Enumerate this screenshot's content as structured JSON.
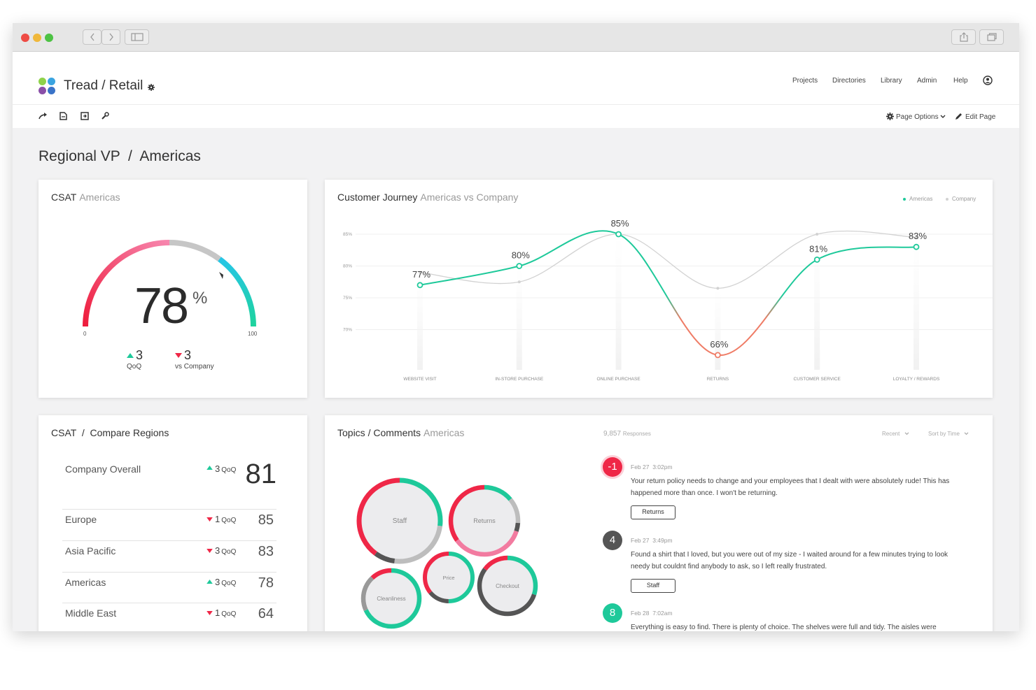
{
  "app": {
    "brand": "Tread / Retail",
    "nav": [
      "Projects",
      "Directories",
      "Library",
      "Admin",
      "Help"
    ]
  },
  "toolbar": {
    "page_options": "Page Options",
    "edit_page": "Edit Page"
  },
  "page": {
    "title": "Regional VP  /  Americas"
  },
  "csat": {
    "title": "CSAT",
    "subtitle": "Americas",
    "value": 78,
    "value_label": "78",
    "unit": "%",
    "min_label": "0",
    "max_label": "100",
    "qoq": {
      "value": "3",
      "label": "QoQ"
    },
    "vs_company": {
      "value": "3",
      "label": "vs Company"
    }
  },
  "journey": {
    "title": "Customer Journey",
    "subtitle": "Americas vs Company",
    "legend": [
      "Americas",
      "Company"
    ]
  },
  "chart_data": {
    "type": "line",
    "categories": [
      "WEBSITE VISIT",
      "IN-STORE PURCHASE",
      "ONLINE PURCHASE",
      "RETURNS",
      "CUSTOMER SERVICE",
      "LOYALTY / REWARDS"
    ],
    "series": [
      {
        "name": "Americas",
        "values": [
          77,
          80,
          85,
          66,
          81,
          83
        ],
        "labels": [
          "77%",
          "80%",
          "85%",
          "66%",
          "81%",
          "83%"
        ]
      },
      {
        "name": "Company",
        "values": [
          79,
          77.5,
          85,
          76.5,
          85,
          84.5
        ]
      }
    ],
    "y_ticks": [
      "85%",
      "80%",
      "75%",
      "70%"
    ],
    "ylim": [
      64,
      87
    ],
    "legend_position": "top-right",
    "colors": {
      "americas": "#1ec99a",
      "company": "#d2d2d2",
      "low": "#ef7c66"
    }
  },
  "compare": {
    "title": "CSAT  /  Compare Regions",
    "overall": {
      "name": "Company Overall",
      "delta": "3",
      "delta_unit": "QoQ",
      "value": "81",
      "dir": "up"
    },
    "regions": [
      {
        "name": "Europe",
        "delta": "1",
        "delta_unit": "QoQ",
        "value": "85",
        "dir": "down"
      },
      {
        "name": "Asia Pacific",
        "delta": "3",
        "delta_unit": "QoQ",
        "value": "83",
        "dir": "down"
      },
      {
        "name": "Americas",
        "delta": "3",
        "delta_unit": "QoQ",
        "value": "78",
        "dir": "up"
      },
      {
        "name": "Middle East",
        "delta": "1",
        "delta_unit": "QoQ",
        "value": "64",
        "dir": "down"
      }
    ]
  },
  "topics": {
    "title": "Topics / Comments",
    "subtitle": "Americas",
    "responses": "9,857",
    "responses_label": "Responses",
    "filter_recent": "Recent",
    "filter_sort": "Sort by Time",
    "bubbles": [
      {
        "label": "Staff",
        "segments": [
          {
            "p": 0.27,
            "c": "#1ec99a"
          },
          {
            "p": 0.25,
            "c": "#bdbdbd"
          },
          {
            "p": 0.08,
            "c": "#555555"
          },
          {
            "p": 0.4,
            "c": "#ef2747"
          }
        ]
      },
      {
        "label": "Returns",
        "segments": [
          {
            "p": 0.14,
            "c": "#1ec99a"
          },
          {
            "p": 0.12,
            "c": "#bdbdbd"
          },
          {
            "p": 0.04,
            "c": "#555555"
          },
          {
            "p": 0.35,
            "c": "#f27ba0"
          },
          {
            "p": 0.35,
            "c": "#ef2747"
          }
        ]
      },
      {
        "label": "Cleanliness",
        "segments": [
          {
            "p": 0.68,
            "c": "#1ec99a"
          },
          {
            "p": 0.2,
            "c": "#999999"
          },
          {
            "p": 0.12,
            "c": "#ef2747"
          }
        ]
      },
      {
        "label": "Price",
        "segments": [
          {
            "p": 0.5,
            "c": "#1ec99a"
          },
          {
            "p": 0.14,
            "c": "#555555"
          },
          {
            "p": 0.36,
            "c": "#ef2747"
          }
        ]
      },
      {
        "label": "Checkout",
        "segments": [
          {
            "p": 0.3,
            "c": "#1ec99a"
          },
          {
            "p": 0.55,
            "c": "#555555"
          },
          {
            "p": 0.15,
            "c": "#ef2747"
          }
        ]
      }
    ],
    "comments": [
      {
        "score": "-1",
        "date": "Feb 27",
        "time": "3:02pm",
        "text": "Your return policy needs to change and your employees that I dealt with were absolutely rude! This has happened more than once.  I won't be returning.",
        "tag": "Returns",
        "color": "#ef2747"
      },
      {
        "score": "4",
        "date": "Feb 27",
        "time": "3:49pm",
        "text": "Found a shirt that I loved, but you were out of my size - I waited around for a few minutes trying to look needy but couldnt find anybody to ask, so I left really frustrated.",
        "tag": "Staff",
        "color": "#555555"
      },
      {
        "score": "8",
        "date": "Feb 28",
        "time": "7:02am",
        "text": "Everything is easy to find. There is plenty of choice. The shelves were full and tidy. The aisles were",
        "tag": "",
        "color": "#1ec99a"
      }
    ]
  }
}
